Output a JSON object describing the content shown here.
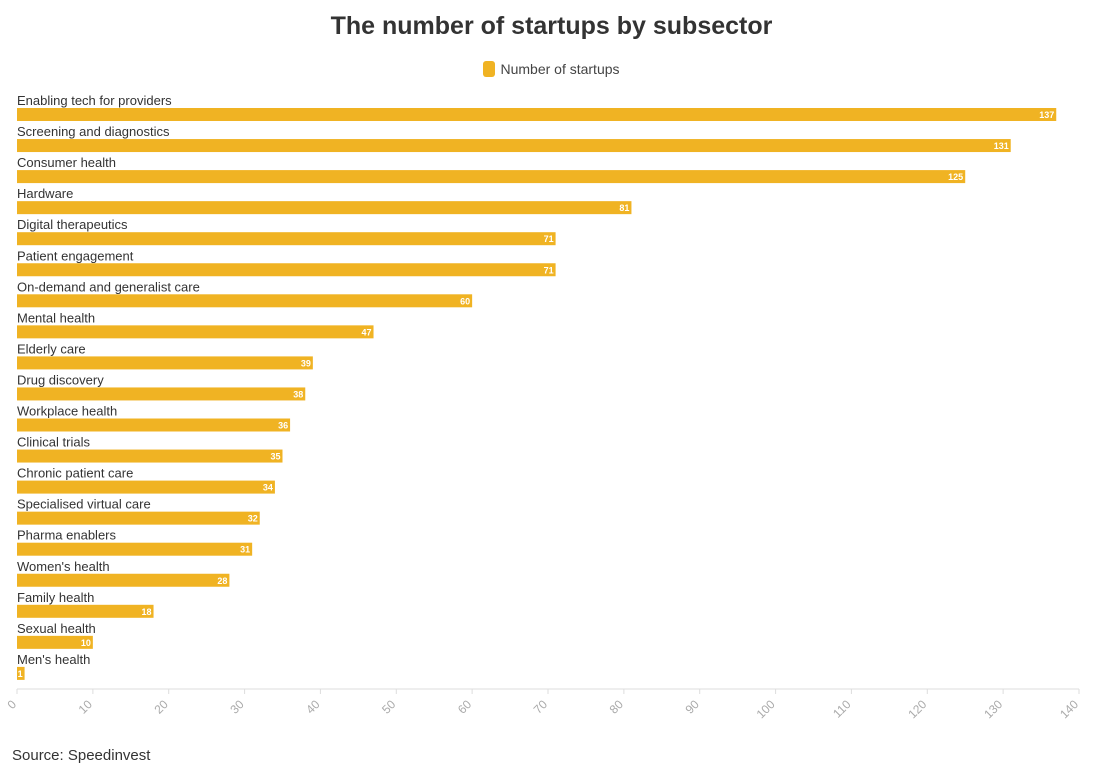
{
  "chart_data": {
    "type": "bar",
    "orientation": "horizontal",
    "title": "The number of startups by subsector",
    "categories": [
      "Enabling tech for providers",
      "Screening and diagnostics",
      "Consumer health",
      "Hardware",
      "Digital therapeutics",
      "Patient engagement",
      "On-demand and generalist care",
      "Mental health",
      "Elderly care",
      "Drug discovery",
      "Workplace health",
      "Clinical trials",
      "Chronic patient care",
      "Specialised virtual care",
      "Pharma enablers",
      "Women's health",
      "Family health",
      "Sexual health",
      "Men's health"
    ],
    "series": [
      {
        "name": "Number of startups",
        "color": "#f0b323",
        "values": [
          137,
          131,
          125,
          81,
          71,
          71,
          60,
          47,
          39,
          38,
          36,
          35,
          34,
          32,
          31,
          28,
          18,
          10,
          1
        ]
      }
    ],
    "xlim": [
      0,
      140
    ],
    "xticks": [
      0,
      10,
      20,
      30,
      40,
      50,
      60,
      70,
      80,
      90,
      100,
      110,
      120,
      130,
      140
    ],
    "legend_position": "top-center",
    "grid": false,
    "data_labels": true
  },
  "source": "Source: Speedinvest"
}
